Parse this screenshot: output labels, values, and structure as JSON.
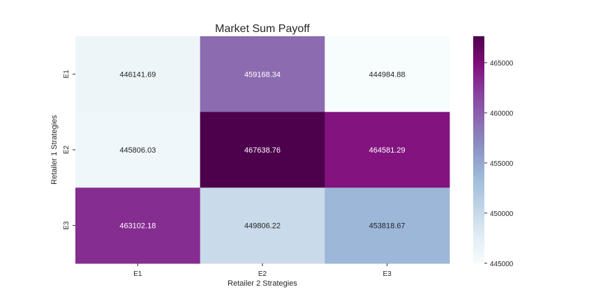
{
  "chart_data": {
    "type": "heatmap",
    "title": "Market Sum Payoff",
    "xlabel": "Retailer 2 Strategies",
    "ylabel": "Retailer 1 Strategies",
    "x_categories": [
      "E1",
      "E2",
      "E3"
    ],
    "y_categories": [
      "E1",
      "E2",
      "E3"
    ],
    "values": [
      [
        446141.69,
        459168.34,
        444984.88
      ],
      [
        445806.03,
        467638.76,
        464581.29
      ],
      [
        463102.18,
        449806.22,
        453818.67
      ]
    ],
    "value_labels": [
      [
        "446141.69",
        "459168.34",
        "444984.88"
      ],
      [
        "445806.03",
        "467638.76",
        "464581.29"
      ],
      [
        "463102.18",
        "449806.22",
        "453818.67"
      ]
    ],
    "colorbar": {
      "vmin": 444984.88,
      "vmax": 467638.76,
      "ticks": [
        445000,
        450000,
        455000,
        460000,
        465000
      ],
      "tick_labels": [
        "445000",
        "450000",
        "455000",
        "460000",
        "465000"
      ]
    },
    "colormap": "BuPu",
    "colormap_stops": [
      "#f7fcfd",
      "#e0ecf4",
      "#bfd3e6",
      "#9ebcda",
      "#8c96c6",
      "#8c6bb1",
      "#88419d",
      "#810f7c",
      "#4d004b"
    ]
  }
}
